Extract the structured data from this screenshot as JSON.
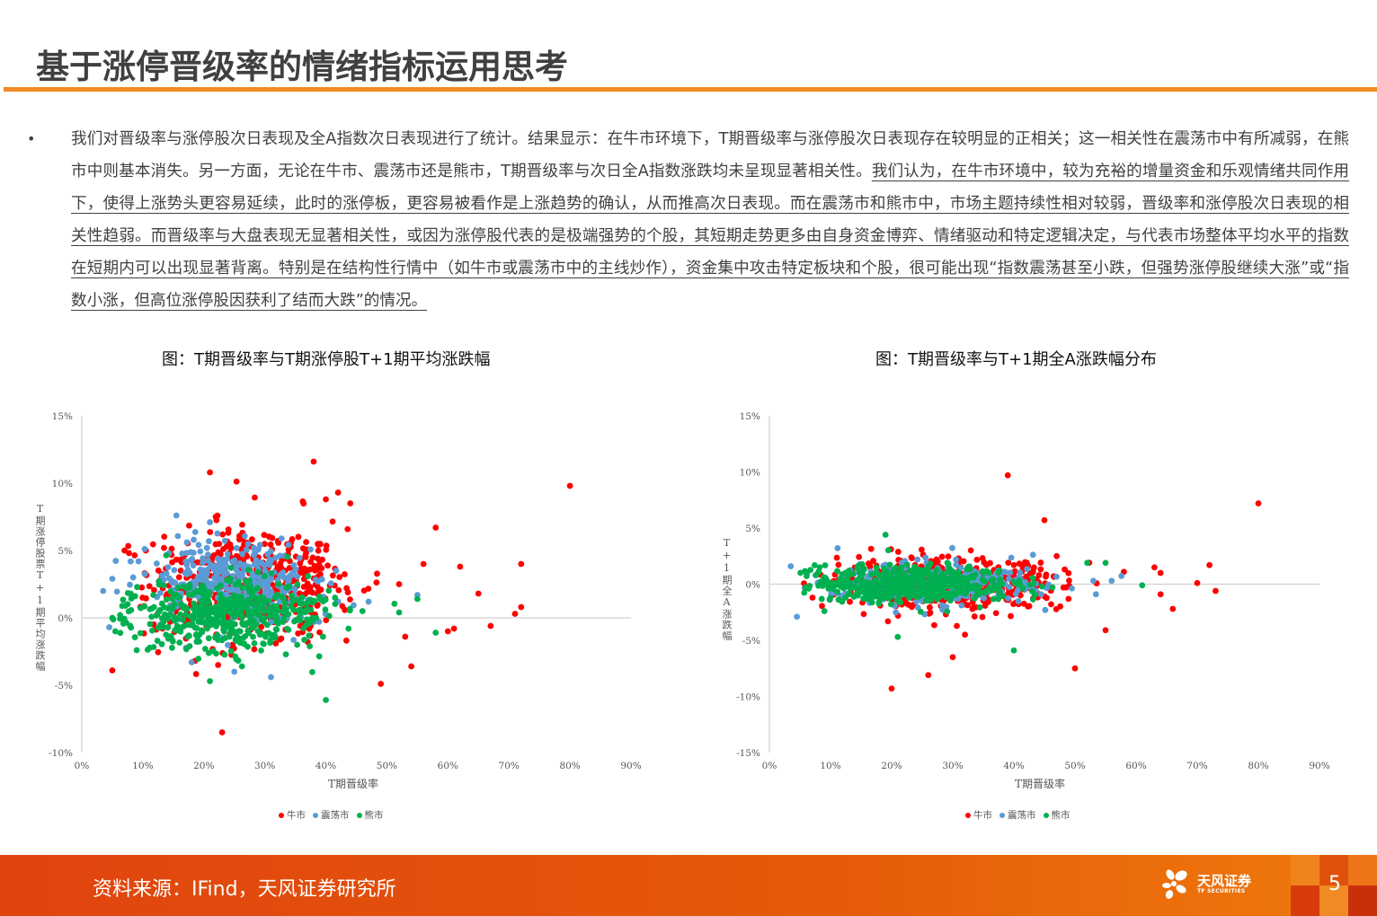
{
  "header": {
    "title": "基于涨停晋级率的情绪指标运用思考"
  },
  "body": {
    "bullet": "•",
    "plain": "我们对晋级率与涨停股次日表现及全A指数次日表现进行了统计。结果显示：在牛市环境下，T期晋级率与涨停股次日表现存在较明显的正相关；这一相关性在震荡市中有所减弱，在熊市中则基本消失。另一方面，无论在牛市、震荡市还是熊市，T期晋级率与次日全A指数涨跌均未呈现显著相关性。",
    "underlined": "我们认为，在牛市环境中，较为充裕的增量资金和乐观情绪共同作用下，使得上涨势头更容易延续，此时的涨停板，更容易被看作是上涨趋势的确认，从而推高次日表现。而在震荡市和熊市中，市场主题持续性相对较弱，晋级率和涨停股次日表现的相关性趋弱。而晋级率与大盘表现无显著相关性，或因为涨停股代表的是极端强势的个股，其短期走势更多由自身资金博弈、情绪驱动和特定逻辑决定，与代表市场整体平均水平的指数在短期内可以出现显著背离。特别是在结构性行情中（如牛市或震荡市中的主线炒作），资金集中攻击特定板块和个股，很可能出现“指数震荡甚至小跌，但强势涨停股继续大涨”或“指数小涨，但高位涨停股因获利了结而大跌”的情况。"
  },
  "figures": {
    "left_caption": "图：T期晋级率与T期涨停股T+1期平均涨跌幅",
    "right_caption": "图：T期晋级率与T+1期全A涨跌幅分布"
  },
  "colors": {
    "bull": "#ff0000",
    "range": "#5b9bd5",
    "bear": "#00b050",
    "accent": "#f08a24",
    "footer": "#e0440e"
  },
  "chart_data": [
    {
      "type": "scatter",
      "title": "图：T期晋级率与T期涨停股T+1期平均涨跌幅",
      "xlabel": "T期晋级率",
      "ylabel": "T期涨停股票T+1期平均涨跌幅",
      "xlim": [
        0,
        0.9
      ],
      "ylim": [
        -0.1,
        0.15
      ],
      "x_ticks": [
        "0%",
        "10%",
        "20%",
        "30%",
        "40%",
        "50%",
        "60%",
        "70%",
        "80%",
        "90%"
      ],
      "y_ticks": [
        "15%",
        "10%",
        "5%",
        "0%",
        "-5%",
        "-10%"
      ],
      "legend": [
        "牛市",
        "震荡市",
        "熊市"
      ],
      "legend_position": "bottom",
      "grid": false,
      "series": [
        {
          "name": "牛市",
          "color": "#ff0000",
          "cluster": {
            "cx": 0.27,
            "cy": 0.025,
            "sx": 0.08,
            "sy": 0.02,
            "n": 520
          },
          "points": [
            [
              0.8,
              0.098
            ],
            [
              0.38,
              0.116
            ],
            [
              0.21,
              0.108
            ],
            [
              0.72,
              0.04
            ],
            [
              0.58,
              0.067
            ],
            [
              0.62,
              0.038
            ],
            [
              0.65,
              0.018
            ],
            [
              0.71,
              0.003
            ],
            [
              0.72,
              0.008
            ],
            [
              0.67,
              -0.006
            ],
            [
              0.61,
              -0.008
            ],
            [
              0.05,
              -0.039
            ],
            [
              0.23,
              -0.085
            ],
            [
              0.49,
              -0.049
            ],
            [
              0.54,
              -0.036
            ],
            [
              0.4,
              0.088
            ],
            [
              0.42,
              0.093
            ],
            [
              0.44,
              0.085
            ],
            [
              0.07,
              0.05
            ],
            [
              0.52,
              0.025
            ],
            [
              0.56,
              0.04
            ],
            [
              0.53,
              -0.014
            ],
            [
              0.6,
              -0.01
            ]
          ]
        },
        {
          "name": "震荡市",
          "color": "#5b9bd5",
          "cluster": {
            "cx": 0.25,
            "cy": 0.025,
            "sx": 0.07,
            "sy": 0.014,
            "n": 380
          },
          "points": [
            [
              0.155,
              0.076
            ],
            [
              0.21,
              0.071
            ],
            [
              0.035,
              0.02
            ],
            [
              0.05,
              0.029
            ],
            [
              0.045,
              -0.007
            ],
            [
              0.18,
              -0.033
            ],
            [
              0.31,
              -0.044
            ],
            [
              0.25,
              -0.04
            ],
            [
              0.47,
              0.012
            ],
            [
              0.55,
              0.017
            ],
            [
              0.42,
              0.012
            ]
          ]
        },
        {
          "name": "熊市",
          "color": "#00b050",
          "cluster": {
            "cx": 0.24,
            "cy": 0.003,
            "sx": 0.08,
            "sy": 0.013,
            "n": 480
          },
          "points": [
            [
              0.05,
              0.0
            ],
            [
              0.055,
              -0.01
            ],
            [
              0.09,
              -0.024
            ],
            [
              0.4,
              -0.061
            ],
            [
              0.21,
              -0.047
            ],
            [
              0.58,
              -0.011
            ],
            [
              0.55,
              0.014
            ],
            [
              0.52,
              0.004
            ],
            [
              0.46,
              0.005
            ]
          ]
        }
      ]
    },
    {
      "type": "scatter",
      "title": "图：T期晋级率与T+1期全A涨跌幅分布",
      "xlabel": "T期晋级率",
      "ylabel": "T+1期全A涨跌幅",
      "xlim": [
        0,
        0.9
      ],
      "ylim": [
        -0.15,
        0.15
      ],
      "x_ticks": [
        "0%",
        "10%",
        "20%",
        "30%",
        "40%",
        "50%",
        "60%",
        "70%",
        "80%",
        "90%"
      ],
      "y_ticks": [
        "15%",
        "10%",
        "5%",
        "0%",
        "-5%",
        "-10%",
        "-15%"
      ],
      "legend": [
        "牛市",
        "震荡市",
        "熊市"
      ],
      "legend_position": "bottom",
      "grid": false,
      "series": [
        {
          "name": "牛市",
          "color": "#ff0000",
          "cluster": {
            "cx": 0.3,
            "cy": 0.0,
            "sx": 0.09,
            "sy": 0.011,
            "n": 520
          },
          "points": [
            [
              0.8,
              0.072
            ],
            [
              0.39,
              0.097
            ],
            [
              0.45,
              0.057
            ],
            [
              0.72,
              0.017
            ],
            [
              0.7,
              0.001
            ],
            [
              0.73,
              -0.006
            ],
            [
              0.66,
              -0.022
            ],
            [
              0.5,
              -0.075
            ],
            [
              0.2,
              -0.093
            ],
            [
              0.26,
              -0.081
            ],
            [
              0.3,
              -0.065
            ],
            [
              0.55,
              -0.041
            ],
            [
              0.58,
              0.011
            ],
            [
              0.64,
              0.01
            ],
            [
              0.47,
              0.025
            ],
            [
              0.64,
              -0.009
            ],
            [
              0.4,
              0.017
            ],
            [
              0.63,
              0.015
            ],
            [
              0.32,
              -0.045
            ]
          ]
        },
        {
          "name": "震荡市",
          "color": "#5b9bd5",
          "cluster": {
            "cx": 0.27,
            "cy": 0.0,
            "sx": 0.08,
            "sy": 0.009,
            "n": 380
          },
          "points": [
            [
              0.035,
              0.016
            ],
            [
              0.045,
              -0.029
            ],
            [
              0.56,
              0.003
            ],
            [
              0.53,
              0.003
            ]
          ]
        },
        {
          "name": "熊市",
          "color": "#00b050",
          "cluster": {
            "cx": 0.24,
            "cy": 0.0,
            "sx": 0.08,
            "sy": 0.008,
            "n": 520
          },
          "points": [
            [
              0.19,
              0.044
            ],
            [
              0.4,
              -0.059
            ],
            [
              0.21,
              -0.047
            ],
            [
              0.09,
              -0.024
            ],
            [
              0.52,
              0.019
            ],
            [
              0.55,
              0.019
            ],
            [
              0.61,
              -0.001
            ]
          ]
        }
      ]
    }
  ],
  "footer": {
    "source": "资料来源：IFind，天风证券研究所",
    "logo_cn": "天风证券",
    "logo_en": "TF SECURITIES",
    "page_number": "5"
  }
}
